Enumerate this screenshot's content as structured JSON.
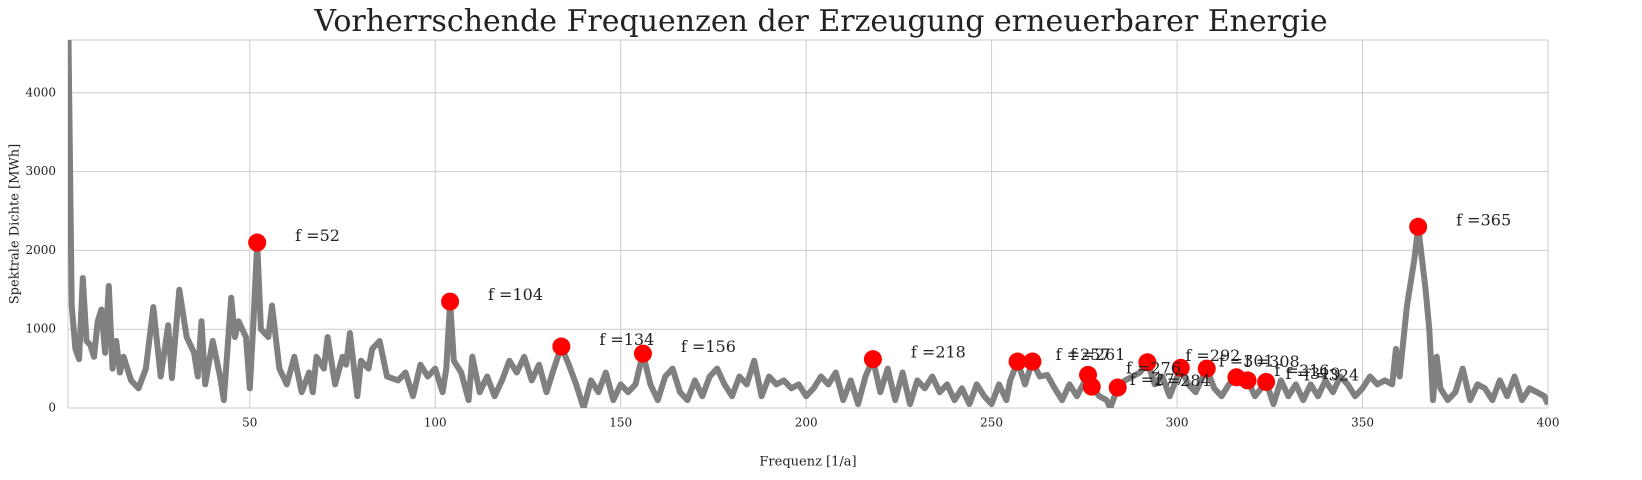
{
  "chart_data": {
    "type": "line",
    "title": "Vorherrschende Frequenzen der Erzeugung erneuerbarer Energie",
    "x_label": "Frequenz [1/a]",
    "y_label": "Spektrale Dichte [MWh]",
    "xlim": [
      1,
      400
    ],
    "ylim": [
      0,
      4670
    ],
    "xticks": [
      50,
      100,
      150,
      200,
      250,
      300,
      350,
      400
    ],
    "yticks": [
      0,
      1000,
      2000,
      3000,
      4000
    ],
    "grid": true,
    "series": [
      {
        "color": "#808080",
        "x": [
          1,
          2,
          3,
          4,
          5,
          6,
          7,
          8,
          9,
          10,
          11,
          12,
          13,
          14,
          15,
          16,
          18,
          20,
          22,
          24,
          26,
          28,
          29,
          31,
          33,
          35,
          36,
          37,
          38,
          40,
          42,
          43,
          45,
          46,
          47,
          49,
          50,
          51,
          52,
          53,
          55,
          56,
          58,
          60,
          62,
          64,
          66,
          67,
          68,
          70,
          71,
          73,
          75,
          76,
          77,
          79,
          80,
          82,
          83,
          85,
          87,
          90,
          92,
          94,
          96,
          98,
          100,
          102,
          103,
          104,
          105,
          107,
          109,
          110,
          112,
          114,
          116,
          118,
          120,
          122,
          124,
          126,
          128,
          130,
          132,
          134,
          136,
          138,
          140,
          142,
          144,
          146,
          148,
          150,
          152,
          154,
          156,
          158,
          160,
          162,
          164,
          166,
          168,
          170,
          172,
          174,
          176,
          178,
          180,
          182,
          184,
          186,
          188,
          190,
          192,
          194,
          196,
          198,
          200,
          202,
          204,
          206,
          208,
          210,
          212,
          214,
          216,
          218,
          220,
          222,
          224,
          226,
          228,
          230,
          232,
          234,
          236,
          238,
          240,
          242,
          244,
          246,
          248,
          250,
          252,
          254,
          255,
          257,
          259,
          261,
          263,
          265,
          267,
          269,
          271,
          273,
          276,
          277,
          279,
          281,
          282,
          284,
          286,
          288,
          290,
          292,
          294,
          296,
          298,
          301,
          303,
          305,
          308,
          310,
          312,
          314,
          316,
          318,
          319,
          321,
          324,
          326,
          328,
          330,
          332,
          334,
          336,
          338,
          340,
          342,
          344,
          346,
          348,
          350,
          352,
          354,
          356,
          358,
          359,
          360,
          362,
          364,
          365,
          367,
          368,
          369,
          370,
          371,
          373,
          375,
          377,
          379,
          381,
          383,
          385,
          387,
          389,
          391,
          393,
          395,
          397,
          399,
          400
        ],
        "values": [
          5200,
          1300,
          750,
          620,
          1650,
          850,
          800,
          650,
          1100,
          1250,
          700,
          1550,
          500,
          850,
          450,
          650,
          350,
          250,
          500,
          1280,
          400,
          1050,
          380,
          1500,
          900,
          700,
          400,
          1100,
          300,
          850,
          400,
          100,
          1400,
          900,
          1100,
          900,
          250,
          1100,
          2100,
          1000,
          900,
          1300,
          500,
          300,
          650,
          200,
          450,
          200,
          650,
          500,
          900,
          300,
          650,
          550,
          950,
          150,
          600,
          500,
          750,
          850,
          400,
          350,
          450,
          150,
          550,
          400,
          500,
          200,
          500,
          1350,
          600,
          450,
          100,
          650,
          200,
          400,
          150,
          350,
          600,
          450,
          650,
          350,
          550,
          200,
          500,
          780,
          550,
          300,
          0,
          350,
          200,
          450,
          100,
          300,
          200,
          300,
          690,
          300,
          100,
          400,
          500,
          200,
          100,
          350,
          150,
          400,
          500,
          300,
          150,
          400,
          300,
          600,
          150,
          400,
          300,
          350,
          250,
          300,
          150,
          250,
          400,
          300,
          450,
          100,
          350,
          50,
          400,
          620,
          200,
          500,
          100,
          450,
          50,
          350,
          250,
          400,
          200,
          300,
          100,
          250,
          50,
          300,
          150,
          50,
          300,
          100,
          350,
          590,
          300,
          590,
          400,
          420,
          250,
          100,
          300,
          150,
          420,
          270,
          150,
          100,
          0,
          260,
          350,
          400,
          450,
          580,
          300,
          400,
          150,
          510,
          300,
          200,
          500,
          250,
          150,
          300,
          390,
          300,
          350,
          150,
          330,
          50,
          350,
          150,
          300,
          100,
          300,
          150,
          350,
          200,
          400,
          300,
          150,
          250,
          400,
          300,
          350,
          300,
          750,
          400,
          1300,
          1900,
          2300,
          1500,
          1000,
          100,
          650,
          250,
          100,
          200,
          500,
          100,
          300,
          250,
          100,
          350,
          150,
          400,
          100,
          250,
          200,
          150,
          50
        ]
      },
      {
        "color": "#ff0000",
        "x": [
          52,
          104,
          134,
          156,
          218,
          257,
          261,
          276,
          277,
          284,
          292,
          301,
          308,
          316,
          319,
          324,
          365
        ],
        "values": [
          2100,
          1350,
          780,
          690,
          620,
          590,
          590,
          420,
          270,
          260,
          580,
          510,
          500,
          390,
          350,
          330,
          2300
        ],
        "labels": [
          "f =52",
          "f =104",
          "f =134",
          "f =156",
          "f =218",
          "f =257",
          "f =261",
          "f =276",
          "f =277",
          "f =284",
          "f =292",
          "f =301",
          "f =308",
          "f =316",
          "f =319",
          "f =324",
          "f =365"
        ]
      }
    ]
  }
}
